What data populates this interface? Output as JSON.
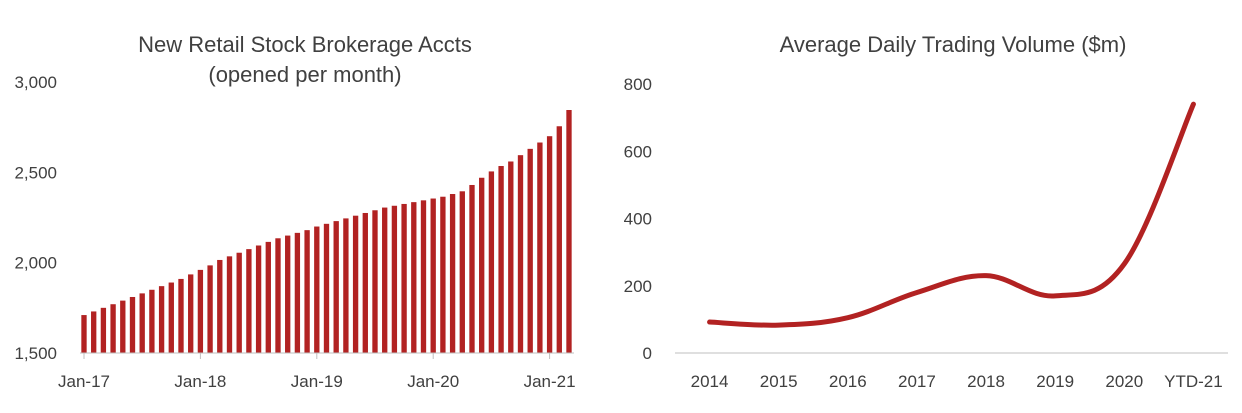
{
  "colors": {
    "series": "#b22222",
    "text": "#404040",
    "axis": "#bfbfbf"
  },
  "chart_data": [
    {
      "type": "bar",
      "title_lines": [
        "New Retail Stock Brokerage Accts",
        "(opened per month)"
      ],
      "xlabel": "",
      "ylabel": "",
      "ylim": [
        1500,
        3000
      ],
      "yticks": [
        "1,500",
        "2,000",
        "2,500",
        "3,000"
      ],
      "ytick_values": [
        1500,
        2000,
        2500,
        3000
      ],
      "xtick_labels": [
        "Jan-17",
        "Jan-18",
        "Jan-19",
        "Jan-20",
        "Jan-21"
      ],
      "xtick_index": [
        0,
        12,
        24,
        36,
        48
      ],
      "grid": false,
      "series": [
        {
          "values": [
            1710,
            1730,
            1750,
            1770,
            1790,
            1810,
            1830,
            1850,
            1870,
            1890,
            1910,
            1935,
            1960,
            1985,
            2015,
            2035,
            2055,
            2075,
            2095,
            2115,
            2135,
            2150,
            2165,
            2180,
            2200,
            2215,
            2230,
            2245,
            2260,
            2275,
            2290,
            2305,
            2315,
            2325,
            2335,
            2345,
            2355,
            2365,
            2380,
            2395,
            2430,
            2470,
            2505,
            2535,
            2560,
            2595,
            2630,
            2665,
            2700,
            2755,
            2845
          ]
        }
      ]
    },
    {
      "type": "line",
      "title": "Average Daily Trading Volume ($m)",
      "xlabel": "",
      "ylabel": "",
      "ylim": [
        0,
        800
      ],
      "yticks": [
        "0",
        "200",
        "400",
        "600",
        "800"
      ],
      "ytick_values": [
        0,
        200,
        400,
        600,
        800
      ],
      "categories": [
        "2014",
        "2015",
        "2016",
        "2017",
        "2018",
        "2019",
        "2020",
        "YTD-21"
      ],
      "grid": false,
      "series": [
        {
          "values": [
            92,
            83,
            105,
            180,
            230,
            170,
            265,
            740
          ]
        }
      ]
    }
  ]
}
